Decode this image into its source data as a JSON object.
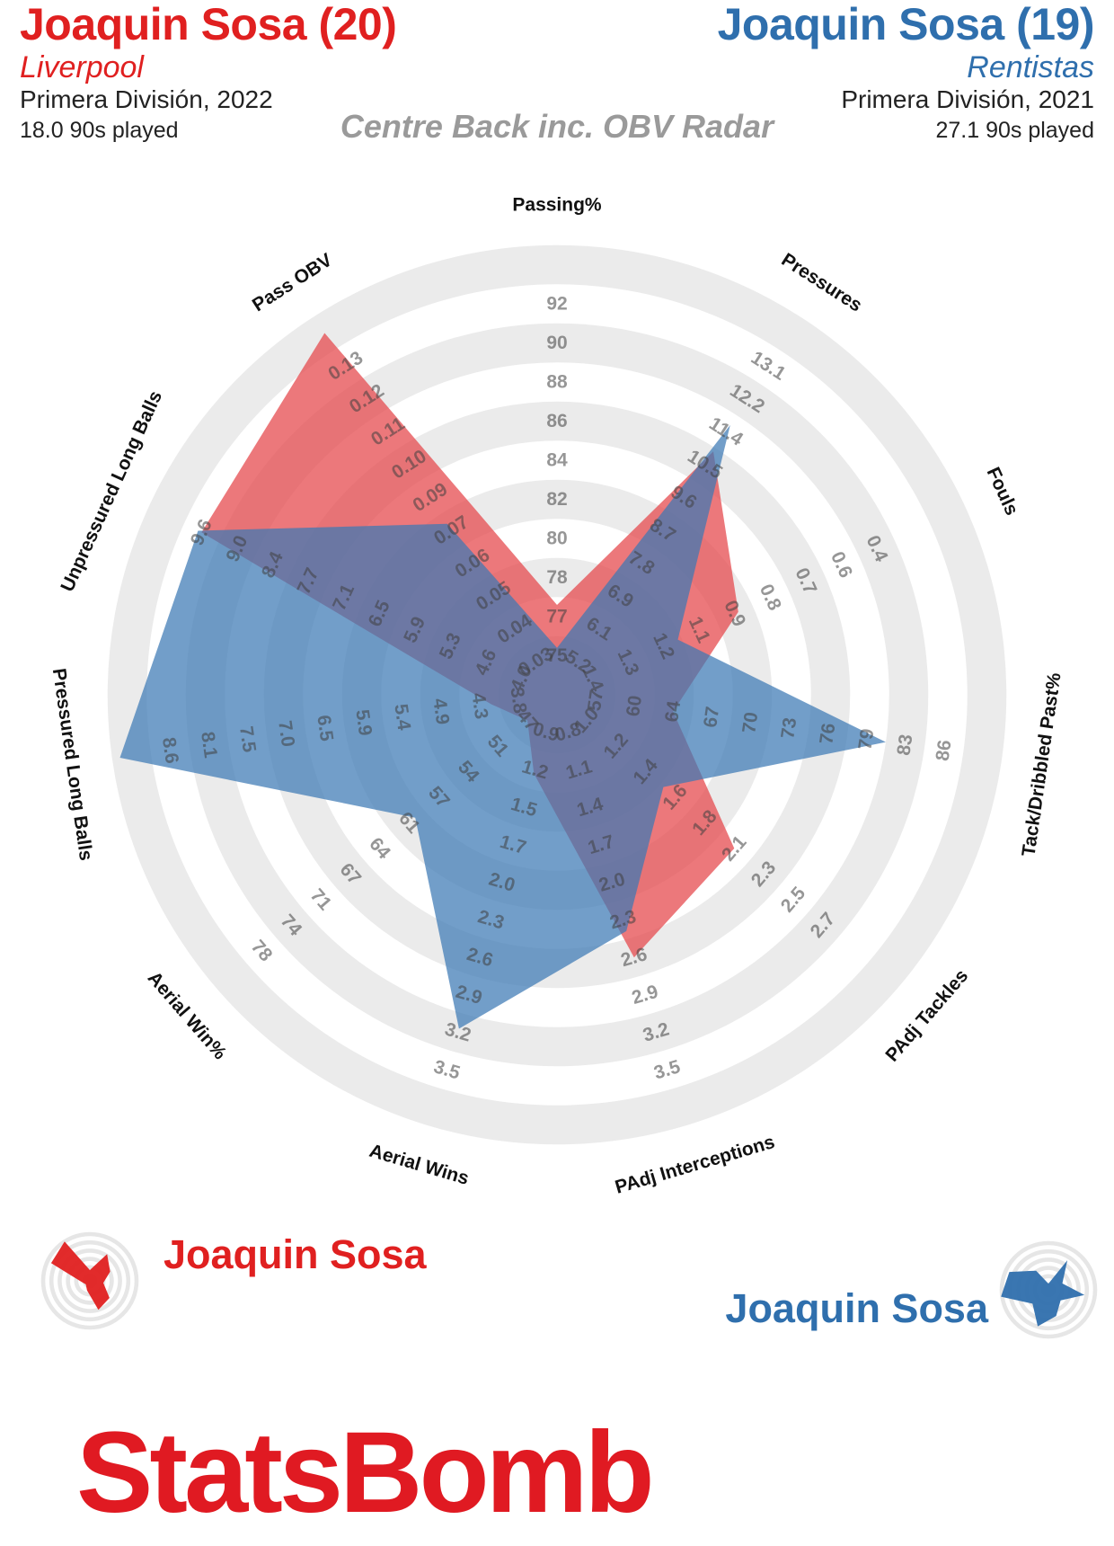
{
  "player1": {
    "name": "Joaquin Sosa (20)",
    "legend_name": "Joaquin Sosa",
    "team": "Liverpool",
    "competition": "Primera División, 2022",
    "minutes": "18.0 90s played",
    "color": "#e02020"
  },
  "player2": {
    "name": "Joaquin Sosa (19)",
    "legend_name": "Joaquin Sosa",
    "team": "Rentistas",
    "competition": "Primera División, 2021",
    "minutes": "27.1 90s played",
    "color": "#2f6fad"
  },
  "radar_title": "Centre Back inc. OBV Radar",
  "logo_text": "StatsBomb",
  "logo_color": "#e01a22",
  "chart_data": {
    "type": "radar",
    "title": "Centre Back inc. OBV Radar",
    "rings": 10,
    "metrics": [
      {
        "label": "Passing%",
        "ticks": [
          "75",
          "77",
          "78",
          "80",
          "82",
          "84",
          "86",
          "88",
          "90",
          "92"
        ]
      },
      {
        "label": "Pressures",
        "ticks": [
          "5.2",
          "6.1",
          "6.9",
          "7.8",
          "8.7",
          "9.6",
          "10.5",
          "11.4",
          "12.2",
          "13.1"
        ]
      },
      {
        "label": "Fouls",
        "ticks": [
          "1.4",
          "1.3",
          "1.2",
          "1.1",
          "0.9",
          "0.8",
          "0.7",
          "0.6",
          "0.4",
          ""
        ]
      },
      {
        "label": "Tack/Dribbled Past%",
        "ticks": [
          "57",
          "60",
          "64",
          "67",
          "70",
          "73",
          "76",
          "79",
          "83",
          "86"
        ]
      },
      {
        "label": "PAdj Tackles",
        "ticks": [
          "1.0",
          "1.2",
          "1.4",
          "1.6",
          "1.8",
          "2.1",
          "2.3",
          "2.5",
          "2.7",
          ""
        ]
      },
      {
        "label": "PAdj Interceptions",
        "ticks": [
          "0.8",
          "1.1",
          "1.4",
          "1.7",
          "2.0",
          "2.3",
          "2.6",
          "2.9",
          "3.2",
          "3.5"
        ]
      },
      {
        "label": "Aerial Wins",
        "ticks": [
          "0.9",
          "1.2",
          "1.5",
          "1.7",
          "2.0",
          "2.3",
          "2.6",
          "2.9",
          "3.2",
          "3.5"
        ]
      },
      {
        "label": "Aerial Win%",
        "ticks": [
          "47",
          "51",
          "54",
          "57",
          "61",
          "64",
          "67",
          "71",
          "74",
          "78"
        ]
      },
      {
        "label": "Pressured Long Balls",
        "ticks": [
          "3.8",
          "4.3",
          "4.9",
          "5.4",
          "5.9",
          "6.5",
          "7.0",
          "7.5",
          "8.1",
          "8.6"
        ]
      },
      {
        "label": "Unpressured Long Balls",
        "ticks": [
          "4.0",
          "4.6",
          "5.3",
          "5.9",
          "6.5",
          "7.1",
          "7.7",
          "8.4",
          "9.0",
          "9.6"
        ]
      },
      {
        "label": "Pass OBV",
        "ticks": [
          "0.03",
          "0.04",
          "0.05",
          "0.06",
          "0.07",
          "0.09",
          "0.10",
          "0.11",
          "0.12",
          "0.13"
        ]
      }
    ],
    "series": [
      {
        "name": "Joaquin Sosa (20)",
        "color": "#e54b4f",
        "ring_values": [
          1.3,
          6.4,
          4.1,
          2.0,
          5.0,
          6.0,
          1.1,
          0.0,
          0.7,
          9.0,
          10.0
        ]
      },
      {
        "name": "Joaquin Sosa (19)",
        "color": "#3c79b4",
        "ring_values": [
          0.2,
          7.2,
          2.4,
          7.5,
          2.6,
          5.3,
          7.9,
          3.8,
          10.3,
          9.1,
          4.2
        ]
      }
    ]
  }
}
